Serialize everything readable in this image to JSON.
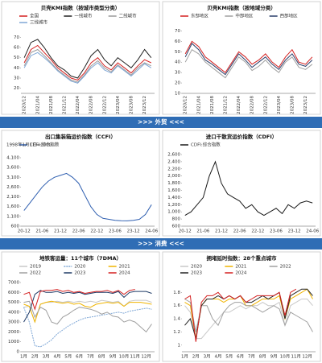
{
  "sections": [
    ">>> 外贸 <<<",
    ">>> 消费 <<<"
  ],
  "chart_data": [
    {
      "type": "line",
      "title": "贝壳KMI指数（按城市类型分类）",
      "grid": false,
      "categories": [
        "2020/12",
        null,
        "2021/04",
        null,
        "2021/08",
        null,
        "2021/12",
        null,
        "2022/04",
        null,
        "2022/08",
        null,
        "2022/12",
        null,
        "2023/04",
        null,
        "2023/08",
        null,
        "2023/12",
        null
      ],
      "ylim": [
        15,
        75
      ],
      "yticks": [
        20,
        30,
        40,
        50,
        60,
        70
      ],
      "series": [
        {
          "name": "全国",
          "color": "#d42020",
          "values": [
            45,
            58,
            62,
            55,
            48,
            40,
            35,
            30,
            28,
            35,
            45,
            50,
            42,
            38,
            45,
            40,
            35,
            42,
            48,
            45
          ]
        },
        {
          "name": "一线城市",
          "color": "#222222",
          "values": [
            50,
            65,
            68,
            60,
            50,
            42,
            38,
            32,
            30,
            40,
            52,
            58,
            48,
            42,
            50,
            45,
            40,
            48,
            58,
            50
          ]
        },
        {
          "name": "二线城市",
          "color": "#9a9a9a",
          "values": [
            42,
            55,
            58,
            52,
            45,
            38,
            33,
            28,
            26,
            33,
            42,
            47,
            40,
            36,
            43,
            38,
            33,
            40,
            45,
            42
          ]
        },
        {
          "name": "三线城市",
          "color": "#7fa7d6",
          "values": [
            40,
            52,
            55,
            50,
            44,
            37,
            32,
            27,
            25,
            32,
            40,
            45,
            38,
            35,
            42,
            37,
            32,
            38,
            44,
            40
          ]
        }
      ]
    },
    {
      "type": "line",
      "title": "贝壳KMI指数（按地域分类）",
      "grid": false,
      "categories": [
        "2020/12",
        null,
        "2021/04",
        null,
        "2021/08",
        null,
        "2021/12",
        null,
        "2022/04",
        null,
        "2022/08",
        null,
        "2022/12",
        null,
        "2023/04",
        null,
        "2023/08",
        null,
        "2023/12",
        null
      ],
      "ylim": [
        10,
        75
      ],
      "yticks": [
        10,
        20,
        30,
        40,
        50,
        60,
        70
      ],
      "series": [
        {
          "name": "东部地区",
          "color": "#d42020",
          "values": [
            48,
            60,
            55,
            45,
            40,
            35,
            30,
            40,
            50,
            45,
            38,
            42,
            48,
            40,
            35,
            45,
            52,
            40,
            38,
            45
          ]
        },
        {
          "name": "中部地区",
          "color": "#a0a0a0",
          "values": [
            40,
            52,
            48,
            40,
            35,
            30,
            25,
            35,
            45,
            40,
            32,
            36,
            42,
            35,
            30,
            40,
            45,
            35,
            33,
            38
          ]
        },
        {
          "name": "西部地区",
          "color": "#2b3f6b",
          "values": [
            45,
            58,
            52,
            42,
            38,
            33,
            28,
            38,
            48,
            42,
            35,
            40,
            45,
            38,
            33,
            42,
            48,
            38,
            36,
            42
          ]
        }
      ]
    },
    {
      "type": "line",
      "title": "出口集装箱运价指数（CCFI）",
      "note": "1998年1月1日=1000",
      "grid": false,
      "categories": [
        "20-12",
        null,
        null,
        "21-06",
        null,
        null,
        "21-12",
        null,
        null,
        "22-06",
        null,
        null,
        "22-12",
        null,
        null,
        "23-06",
        null,
        null,
        "23-12",
        null,
        null,
        "24-06"
      ],
      "ylim": [
        600,
        4100
      ],
      "yticks": [
        600,
        {
          "value": 1100,
          "label": "1,100"
        },
        {
          "value": 1600,
          "label": "1,600"
        },
        {
          "value": 2100,
          "label": "2,100"
        },
        {
          "value": 2600,
          "label": "2,600"
        },
        {
          "value": 3100,
          "label": "3,100"
        },
        {
          "value": 3600,
          "label": "3,600"
        },
        {
          "value": 4100,
          "label": "4,100"
        }
      ],
      "series": [
        {
          "name": "CCFI:综合指数",
          "color": "#2f5fb0",
          "values": [
            1400,
            1800,
            2200,
            2600,
            2900,
            3100,
            3200,
            3300,
            3100,
            2800,
            2200,
            1600,
            1200,
            1000,
            950,
            900,
            880,
            870,
            900,
            950,
            1200,
            1700
          ]
        }
      ]
    },
    {
      "type": "line",
      "title": "进口干散货运价指数（CDFI）",
      "grid": false,
      "categories": [
        "20-12",
        null,
        null,
        "21-06",
        null,
        null,
        "21-12",
        null,
        null,
        "22-06",
        null,
        null,
        "22-12",
        null,
        null,
        "23-06",
        null,
        null,
        "23-12",
        null,
        null,
        "24-06"
      ],
      "ylim": [
        600,
        2600
      ],
      "yticks": [
        600,
        800,
        {
          "value": 1000,
          "label": "1,000"
        },
        {
          "value": 1200,
          "label": "1,200"
        },
        {
          "value": 1400,
          "label": "1,400"
        },
        {
          "value": 1600,
          "label": "1,600"
        },
        {
          "value": 1800,
          "label": "1,800"
        },
        {
          "value": 2000,
          "label": "2,000"
        },
        {
          "value": 2200,
          "label": "2,200"
        },
        {
          "value": 2400,
          "label": "2,400"
        },
        {
          "value": 2600,
          "label": "2,600"
        }
      ],
      "series": [
        {
          "name": "CDFI:综合指数",
          "color": "#1a1a1a",
          "values": [
            900,
            1000,
            1200,
            1400,
            2000,
            2400,
            1800,
            1500,
            1400,
            1300,
            1100,
            1200,
            1000,
            900,
            1000,
            1100,
            950,
            1200,
            1100,
            1250,
            1300,
            1250
          ]
        }
      ]
    },
    {
      "type": "line",
      "title": "地铁客运量：11个城市（7DMA）",
      "grid": false,
      "categories": [
        "1月",
        null,
        "2月",
        null,
        "3月",
        null,
        "4月",
        null,
        "5月",
        null,
        "6月",
        null,
        "7月",
        null,
        "8月",
        null,
        "9月",
        null,
        "10月",
        null,
        "11月",
        null,
        "12月",
        null
      ],
      "ylim": [
        0,
        7000
      ],
      "yticks": [
        0,
        1000,
        2000,
        3000,
        4000,
        5000,
        6000,
        7000
      ],
      "series": [
        {
          "name": "2019",
          "color": "#c8c8c8",
          "values": [
            4500,
            4600,
            3000,
            4800,
            5000,
            5000,
            5100,
            5000,
            5100,
            5000,
            5100,
            5000,
            5100,
            5000,
            5200,
            5100,
            5000,
            5100,
            4600,
            5100,
            5200,
            5200,
            5200,
            5000
          ]
        },
        {
          "name": "2020",
          "color": "#7fa7d6",
          "dash": true,
          "values": [
            4500,
            3000,
            600,
            500,
            800,
            1200,
            1800,
            2200,
            2600,
            2900,
            3200,
            3400,
            3500,
            3600,
            3700,
            3800,
            3900,
            4000,
            3900,
            4100,
            4200,
            4300,
            4400,
            4300
          ]
        },
        {
          "name": "2021",
          "color": "#f0b400",
          "values": [
            4800,
            4600,
            3000,
            4800,
            5000,
            5100,
            5000,
            4900,
            5000,
            4800,
            4900,
            4600,
            4500,
            4800,
            4900,
            5000,
            4900,
            5000,
            4600,
            5000,
            5000,
            5000,
            4900,
            4800
          ]
        },
        {
          "name": "2022",
          "color": "#a0a0a0",
          "values": [
            5000,
            5100,
            3500,
            4500,
            4200,
            3000,
            2800,
            3500,
            3800,
            4200,
            4500,
            4400,
            4300,
            4100,
            3800,
            4000,
            3600,
            3500,
            3000,
            3200,
            3000,
            2500,
            2000,
            2800
          ]
        },
        {
          "name": "2023",
          "color": "#1f3a66",
          "values": [
            3000,
            4000,
            5800,
            6200,
            6000,
            6000,
            6100,
            5900,
            6000,
            5900,
            6000,
            5800,
            5900,
            6000,
            6000,
            6000,
            5900,
            6100,
            5500,
            6000,
            6100,
            6100,
            6100,
            5900
          ]
        },
        {
          "name": "2024",
          "color": "#d42020",
          "values": [
            5800,
            6000,
            4300,
            6100,
            6200,
            6200,
            6300,
            6100,
            6200,
            6000,
            6100,
            5900,
            6000,
            6100,
            6100,
            6200,
            6000,
            6200,
            5800,
            6200,
            6300,
            null,
            null,
            null
          ]
        }
      ]
    },
    {
      "type": "line",
      "title": "拥堵延时指数：28个重点城市",
      "grid": false,
      "categories": [
        "1月",
        null,
        "2月",
        null,
        "3月",
        null,
        "4月",
        null,
        "5月",
        null,
        "6月",
        null,
        "7月",
        null,
        "8月",
        null,
        "9月",
        null,
        "10月",
        null,
        "11月",
        null,
        "12月",
        null
      ],
      "ylim": [
        0.9,
        1.95
      ],
      "yticks": [
        1,
        1.2,
        1.4,
        1.6,
        1.8
      ],
      "series": [
        {
          "name": "2020",
          "color": "#c8c8c8",
          "values": [
            1.6,
            1.5,
            1.1,
            1.1,
            1.2,
            1.3,
            1.4,
            1.5,
            1.5,
            1.55,
            1.6,
            1.55,
            1.6,
            1.6,
            1.65,
            1.6,
            1.6,
            1.65,
            1.3,
            1.6,
            1.65,
            1.7,
            1.7,
            1.6
          ]
        },
        {
          "name": "2021",
          "color": "#f0b400",
          "values": [
            1.65,
            1.6,
            1.1,
            1.6,
            1.7,
            1.7,
            1.7,
            1.65,
            1.7,
            1.7,
            1.75,
            1.6,
            1.6,
            1.65,
            1.7,
            1.7,
            1.7,
            1.75,
            1.4,
            1.7,
            1.75,
            1.8,
            1.85,
            1.7
          ]
        },
        {
          "name": "2022",
          "color": "#a0a0a0",
          "values": [
            1.7,
            1.65,
            1.2,
            1.6,
            1.6,
            1.4,
            1.3,
            1.5,
            1.6,
            1.65,
            1.65,
            1.6,
            1.6,
            1.55,
            1.5,
            1.55,
            1.6,
            1.55,
            1.3,
            1.5,
            1.45,
            1.4,
            1.35,
            1.2
          ]
        },
        {
          "name": "2023",
          "color": "#222222",
          "values": [
            1.3,
            1.4,
            1.1,
            1.6,
            1.7,
            1.7,
            1.75,
            1.7,
            1.75,
            1.7,
            1.75,
            1.65,
            1.65,
            1.7,
            1.75,
            1.7,
            1.75,
            1.8,
            1.4,
            1.75,
            1.8,
            1.85,
            1.85,
            1.75
          ]
        },
        {
          "name": "2024",
          "color": "#d42020",
          "values": [
            1.7,
            1.75,
            1.05,
            1.65,
            1.75,
            1.75,
            1.8,
            1.7,
            1.75,
            1.7,
            1.75,
            1.65,
            1.7,
            1.75,
            1.75,
            1.75,
            1.75,
            1.8,
            1.45,
            1.8,
            1.85,
            null,
            null,
            null
          ]
        }
      ]
    }
  ]
}
